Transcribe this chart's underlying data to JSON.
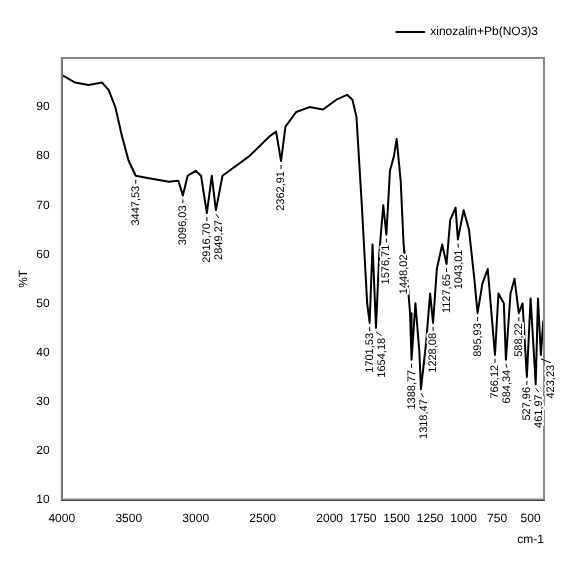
{
  "chart_data": {
    "type": "line",
    "ylabel": "%T",
    "xlabel": "cm-1",
    "legend": "top right",
    "xlim": [
      4000,
      400
    ],
    "xticks": [
      4000,
      3500,
      3000,
      2500,
      2000,
      1750,
      1500,
      1250,
      1000,
      750,
      500
    ],
    "ylim": [
      10,
      100
    ],
    "yticks": [
      10,
      20,
      30,
      40,
      50,
      60,
      70,
      80,
      90
    ],
    "marker": "none",
    "line_style": "solid",
    "x": [
      3990,
      3900,
      3800,
      3700,
      3650,
      3600,
      3550,
      3500,
      3447.53,
      3350,
      3200,
      3130,
      3096.03,
      3060,
      3000,
      2960,
      2916.7,
      2880,
      2849.27,
      2800,
      2700,
      2600,
      2450,
      2400,
      2362.91,
      2330,
      2250,
      2150,
      2050,
      1950,
      1870,
      1830,
      1800,
      1760,
      1720,
      1701.53,
      1680,
      1654.18,
      1630,
      1600,
      1576.71,
      1550,
      1520,
      1500,
      1470,
      1448.02,
      1420,
      1400,
      1388.77,
      1360,
      1330,
      1318.47,
      1280,
      1250,
      1228.08,
      1200,
      1160,
      1127.65,
      1100,
      1060,
      1043.01,
      1000,
      960,
      920,
      895.93,
      860,
      820,
      766.12,
      740,
      700,
      684.34,
      650,
      620,
      588.22,
      560,
      527.96,
      500,
      461.97,
      445,
      423.23,
      405
    ],
    "series": [
      {
        "name": "xinozalin+Pb(NO3)3",
        "color": "#000000",
        "values": [
          96.4,
          95,
          94.5,
          95,
          93.5,
          90,
          84,
          79,
          76,
          75.5,
          74.8,
          75,
          72,
          76,
          77,
          76,
          68.4,
          76,
          69,
          76,
          78,
          80,
          84,
          85,
          79,
          86,
          89,
          90,
          89.5,
          91.5,
          92.5,
          91.5,
          88,
          70,
          50,
          46,
          62,
          45,
          60,
          70,
          64,
          77,
          80,
          83.5,
          75,
          62,
          55,
          48,
          38.5,
          50,
          40,
          32.5,
          42,
          52,
          46,
          57,
          62,
          58,
          67,
          69.5,
          63,
          69,
          65,
          55,
          48,
          54,
          57,
          39.5,
          52,
          50,
          38.5,
          52,
          55,
          48,
          50,
          35,
          51,
          33.5,
          51,
          39.5,
          46.5
        ]
      }
    ],
    "annotations": [
      {
        "text": "3447,53",
        "x": 3447.53,
        "y": 76
      },
      {
        "text": "3096,03",
        "x": 3096.03,
        "y": 72
      },
      {
        "text": "2916,70",
        "x": 2916.7,
        "y": 68.4
      },
      {
        "text": "2849,27",
        "x": 2849.27,
        "y": 69
      },
      {
        "text": "2362,91",
        "x": 2362.91,
        "y": 79
      },
      {
        "text": "1701,53",
        "x": 1701.53,
        "y": 46
      },
      {
        "text": "1654,18",
        "x": 1654.18,
        "y": 45
      },
      {
        "text": "1576,71",
        "x": 1576.71,
        "y": 64
      },
      {
        "text": "1448,02",
        "x": 1448.02,
        "y": 62
      },
      {
        "text": "1388,77",
        "x": 1388.77,
        "y": 38.5
      },
      {
        "text": "1318,47",
        "x": 1318.47,
        "y": 32.5
      },
      {
        "text": "1228,08",
        "x": 1228.08,
        "y": 46
      },
      {
        "text": "1127,65",
        "x": 1127.65,
        "y": 58
      },
      {
        "text": "1043,01",
        "x": 1043.01,
        "y": 63
      },
      {
        "text": "895,93",
        "x": 895.93,
        "y": 48
      },
      {
        "text": "766,12",
        "x": 766.12,
        "y": 39.5
      },
      {
        "text": "684,34",
        "x": 684.34,
        "y": 38.5
      },
      {
        "text": "588,22",
        "x": 588.22,
        "y": 48
      },
      {
        "text": "527,96",
        "x": 527.96,
        "y": 35
      },
      {
        "text": "461,97",
        "x": 461.97,
        "y": 33.5
      },
      {
        "text": "423,23",
        "x": 423.23,
        "y": 39.5
      }
    ]
  }
}
